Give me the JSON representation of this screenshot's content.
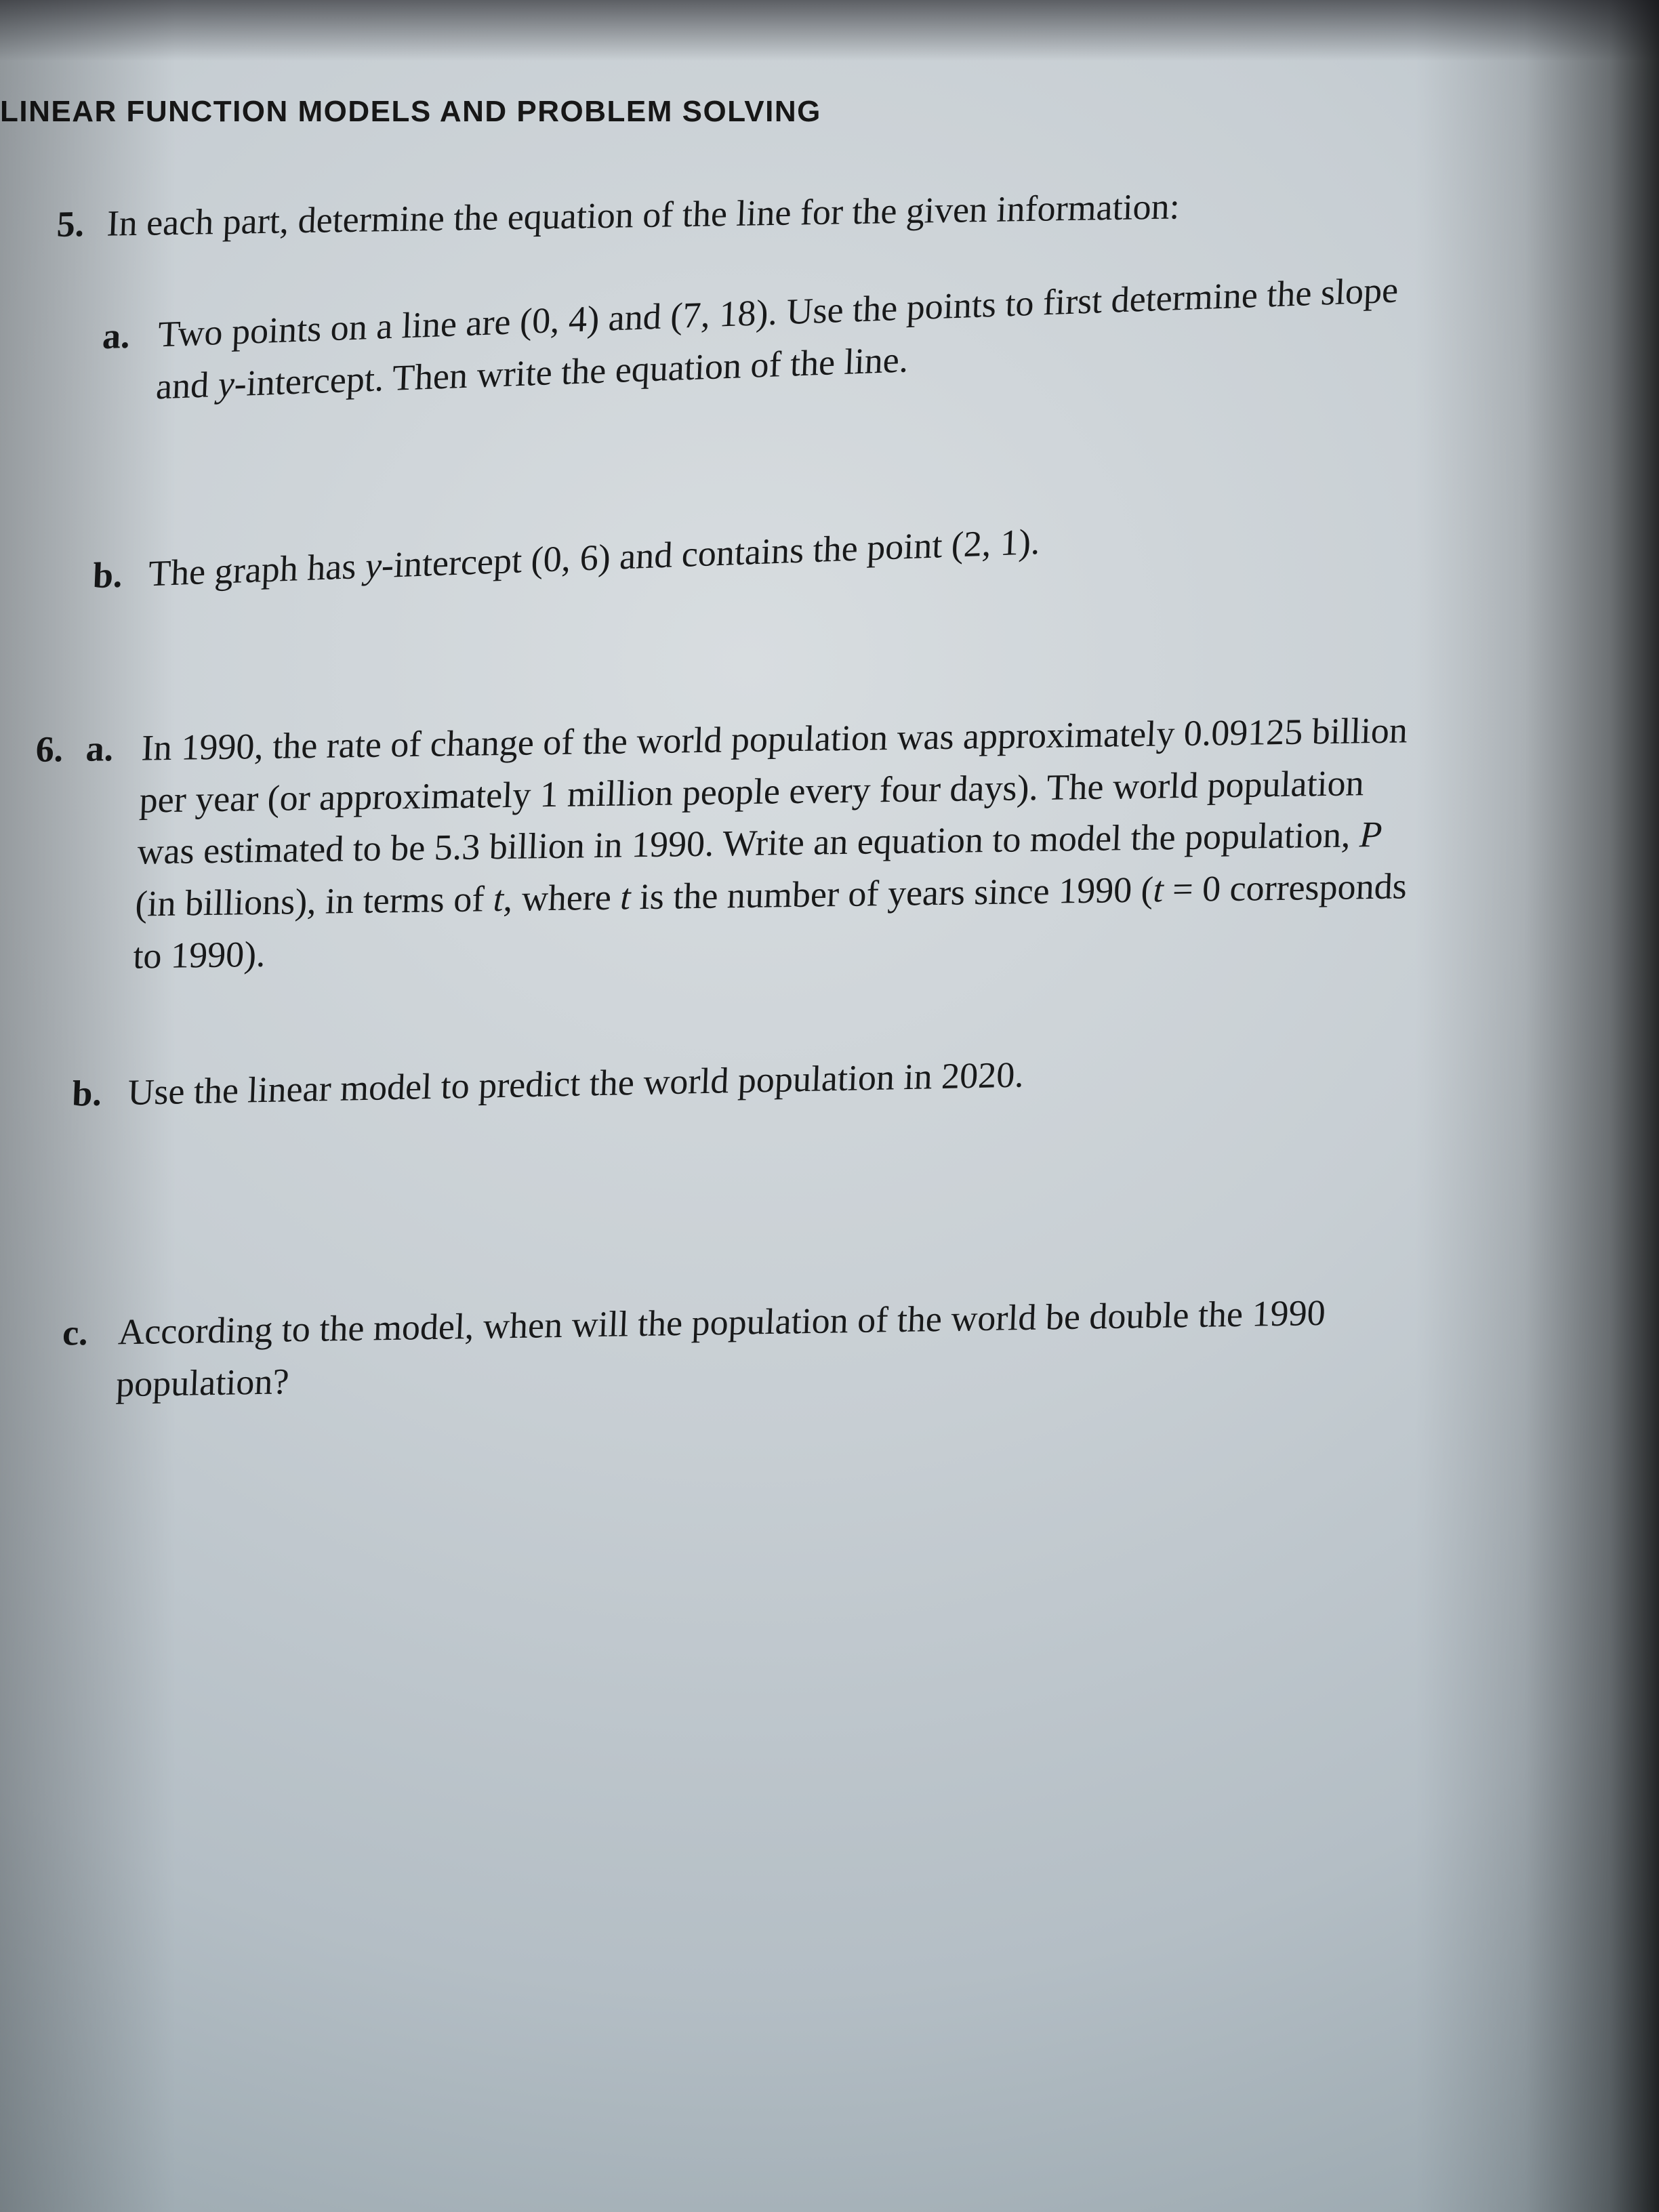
{
  "page": {
    "running_head": "LINEAR FUNCTION MODELS AND PROBLEM SOLVING",
    "background_gradient": [
      "#d8dde0",
      "#c7ced3",
      "#b4bec5",
      "#9ba8af",
      "#6f7c82"
    ],
    "text_color": "#18191a",
    "body_fontfamily": "Times New Roman",
    "body_fontsize_pt": 14,
    "header_fontfamily": "Helvetica",
    "header_fontsize_pt": 11,
    "header_fontweight": 700
  },
  "problems": [
    {
      "number": "5.",
      "stem": "In each part, determine the equation of the line for the given information:",
      "parts": [
        {
          "letter": "a.",
          "text": "Two points on a line are (0, 4) and (7, 18). Use the points to first determine the slope and y-intercept. Then write the equation of the line."
        },
        {
          "letter": "b.",
          "text": "The graph has y-intercept (0, 6) and contains the point (2, 1)."
        }
      ]
    },
    {
      "number": "6.",
      "stem": "",
      "parts": [
        {
          "letter": "a.",
          "text": "In 1990, the rate of change of the world population was approximately 0.09125 billion per year (or approximately 1 million people every four days). The world population was estimated to be 5.3 billion in 1990. Write an equation to model the population, P (in billions), in terms of t, where t is the number of years since 1990 (t = 0 corresponds to 1990)."
        },
        {
          "letter": "b.",
          "text": "Use the linear model to predict the world population in 2020."
        },
        {
          "letter": "c.",
          "text": "According to the model, when will the population of the world be double the 1990 population?"
        }
      ]
    }
  ]
}
